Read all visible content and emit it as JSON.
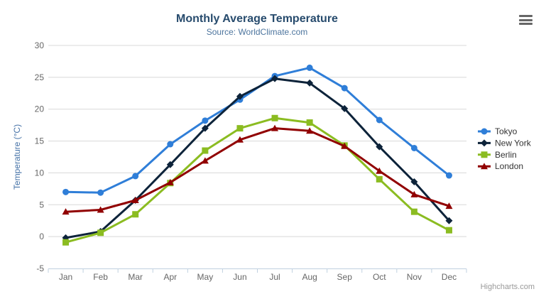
{
  "chart_data": {
    "type": "line",
    "title": "Monthly Average Temperature",
    "subtitle": "Source: WorldClimate.com",
    "ylabel": "Temperature (°C)",
    "xlabel": "",
    "ylim": [
      -5,
      30
    ],
    "ytick_step": 5,
    "grid": true,
    "legend_position": "right",
    "categories": [
      "Jan",
      "Feb",
      "Mar",
      "Apr",
      "May",
      "Jun",
      "Jul",
      "Aug",
      "Sep",
      "Oct",
      "Nov",
      "Dec"
    ],
    "series": [
      {
        "name": "Tokyo",
        "color": "#2f7ed8",
        "marker": "circle",
        "values": [
          7.0,
          6.9,
          9.5,
          14.5,
          18.2,
          21.5,
          25.2,
          26.5,
          23.3,
          18.3,
          13.9,
          9.6
        ]
      },
      {
        "name": "New York",
        "color": "#0d233a",
        "marker": "diamond",
        "values": [
          -0.2,
          0.8,
          5.7,
          11.3,
          17.0,
          22.0,
          24.8,
          24.1,
          20.1,
          14.1,
          8.6,
          2.5
        ]
      },
      {
        "name": "Berlin",
        "color": "#8bbc21",
        "marker": "square",
        "values": [
          -0.9,
          0.6,
          3.5,
          8.4,
          13.5,
          17.0,
          18.6,
          17.9,
          14.3,
          9.0,
          3.9,
          1.0
        ]
      },
      {
        "name": "London",
        "color": "#910000",
        "marker": "triangle",
        "values": [
          3.9,
          4.2,
          5.7,
          8.5,
          11.9,
          15.2,
          17.0,
          16.6,
          14.2,
          10.3,
          6.6,
          4.8
        ]
      }
    ],
    "credits": "Highcharts.com"
  },
  "colors": {
    "title": "#274b6d",
    "subtitle": "#4d759e",
    "yaxis_title": "#4572a7",
    "axis_label": "#666666",
    "grid_line": "#d8d8d8",
    "axis_line": "#c0d0e0",
    "legend_text": "#333333",
    "credits": "#999999",
    "menu_icon": "#666666"
  }
}
